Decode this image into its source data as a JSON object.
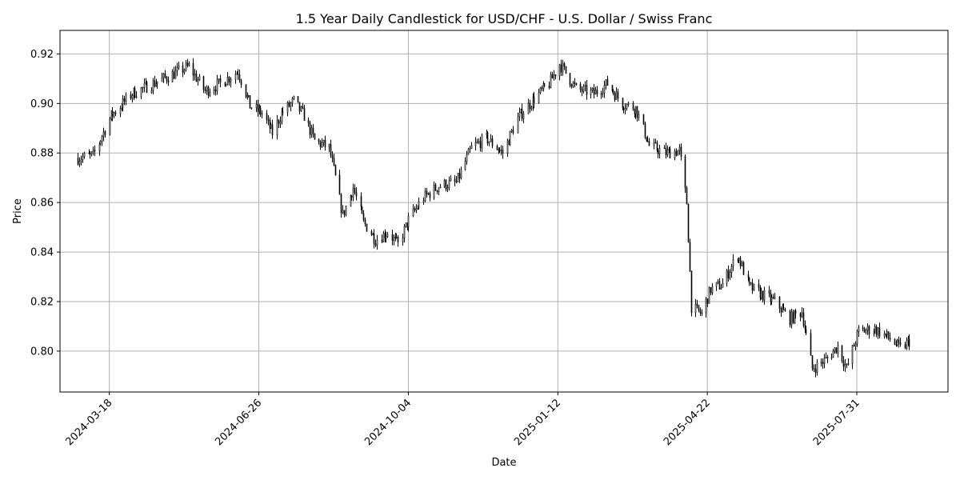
{
  "chart_data": {
    "type": "candlestick",
    "title": "1.5 Year Daily Candlestick for USD/CHF - U.S. Dollar / Swiss Franc",
    "xlabel": "Date",
    "ylabel": "Price",
    "xlim": [
      "2024-02-14",
      "2025-09-30"
    ],
    "ylim": [
      0.7835,
      0.9295
    ],
    "grid": true,
    "x_ticks": [
      "2024-03-18",
      "2024-06-26",
      "2024-10-04",
      "2025-01-12",
      "2025-04-22",
      "2025-07-31"
    ],
    "y_ticks": [
      "0.80",
      "0.82",
      "0.84",
      "0.86",
      "0.88",
      "0.90",
      "0.92"
    ],
    "y_tick_values": [
      0.8,
      0.82,
      0.84,
      0.86,
      0.88,
      0.9,
      0.92
    ],
    "colors": {
      "up": "#ffffff",
      "down": "#000000",
      "wick": "#000000",
      "grid": "#b0b0b0"
    },
    "anchors": [
      [
        "2024-02-26",
        0.878
      ],
      [
        "2024-03-07",
        0.879
      ],
      [
        "2024-03-19",
        0.895
      ],
      [
        "2024-04-02",
        0.904
      ],
      [
        "2024-04-16",
        0.908
      ],
      [
        "2024-04-30",
        0.912
      ],
      [
        "2024-05-10",
        0.915
      ],
      [
        "2024-05-21",
        0.905
      ],
      [
        "2024-05-31",
        0.908
      ],
      [
        "2024-06-12",
        0.913
      ],
      [
        "2024-06-20",
        0.899
      ],
      [
        "2024-06-28",
        0.896
      ],
      [
        "2024-07-05",
        0.888
      ],
      [
        "2024-07-11",
        0.896
      ],
      [
        "2024-07-19",
        0.901
      ],
      [
        "2024-07-26",
        0.895
      ],
      [
        "2024-08-02",
        0.885
      ],
      [
        "2024-08-12",
        0.882
      ],
      [
        "2024-08-21",
        0.855
      ],
      [
        "2024-08-28",
        0.866
      ],
      [
        "2024-09-04",
        0.852
      ],
      [
        "2024-09-12",
        0.845
      ],
      [
        "2024-09-20",
        0.848
      ],
      [
        "2024-09-27",
        0.843
      ],
      [
        "2024-10-04",
        0.853
      ],
      [
        "2024-10-14",
        0.862
      ],
      [
        "2024-10-25",
        0.867
      ],
      [
        "2024-11-05",
        0.868
      ],
      [
        "2024-11-15",
        0.882
      ],
      [
        "2024-11-25",
        0.886
      ],
      [
        "2024-12-06",
        0.88
      ],
      [
        "2024-12-16",
        0.894
      ],
      [
        "2024-12-27",
        0.902
      ],
      [
        "2025-01-06",
        0.908
      ],
      [
        "2025-01-13",
        0.916
      ],
      [
        "2025-01-24",
        0.906
      ],
      [
        "2025-02-05",
        0.904
      ],
      [
        "2025-02-14",
        0.908
      ],
      [
        "2025-02-24",
        0.9
      ],
      [
        "2025-03-05",
        0.898
      ],
      [
        "2025-03-14",
        0.883
      ],
      [
        "2025-03-25",
        0.88
      ],
      [
        "2025-04-03",
        0.881
      ],
      [
        "2025-04-08",
        0.86
      ],
      [
        "2025-04-11",
        0.818
      ],
      [
        "2025-04-18",
        0.815
      ],
      [
        "2025-04-24",
        0.825
      ],
      [
        "2025-05-02",
        0.827
      ],
      [
        "2025-05-12",
        0.839
      ],
      [
        "2025-05-20",
        0.826
      ],
      [
        "2025-05-28",
        0.823
      ],
      [
        "2025-06-06",
        0.82
      ],
      [
        "2025-06-16",
        0.813
      ],
      [
        "2025-06-24",
        0.816
      ],
      [
        "2025-07-01",
        0.793
      ],
      [
        "2025-07-11",
        0.797
      ],
      [
        "2025-07-18",
        0.802
      ],
      [
        "2025-07-24",
        0.793
      ],
      [
        "2025-08-01",
        0.808
      ],
      [
        "2025-08-12",
        0.809
      ],
      [
        "2025-08-22",
        0.805
      ],
      [
        "2025-08-29",
        0.801
      ],
      [
        "2025-09-04",
        0.804
      ]
    ]
  }
}
